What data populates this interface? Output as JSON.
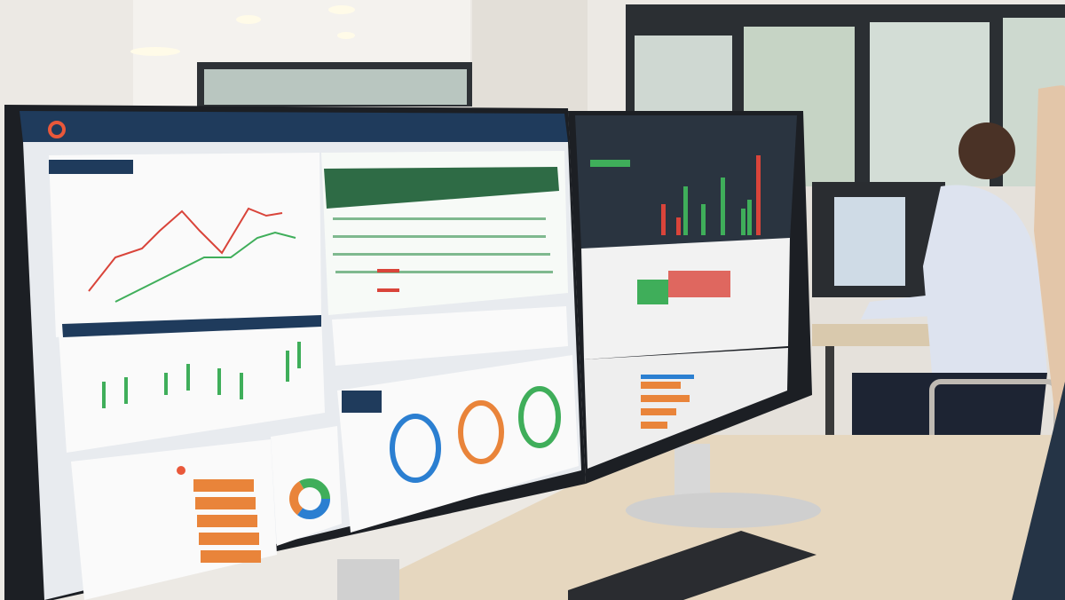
{
  "scene": {
    "kind": "office photo with two monitors showing analytics dashboards",
    "colors": {
      "wall": "#ece9e4",
      "window_frame": "#2b2f33",
      "window_glass": "#cfd8d2",
      "monitor_bezel": "#1c1f24",
      "dashboard_header": "#1f3b5c",
      "table_header": "#2e6b45",
      "chart_red": "#d9443a",
      "chart_green": "#3fae5a",
      "bar_orange": "#e9843a",
      "ring_blue": "#2b7fd1",
      "desk": "#e6d7bf",
      "shirt": "#dde3ef"
    }
  },
  "left_monitor": {
    "panels": [
      "line-chart",
      "candlestick-chart",
      "data-table",
      "summary-list",
      "donut-rings",
      "bar-list",
      "pie-chart"
    ]
  },
  "right_monitor": {
    "panels": [
      "dark-bar-chart",
      "progress-table",
      "horizontal-bars"
    ]
  }
}
